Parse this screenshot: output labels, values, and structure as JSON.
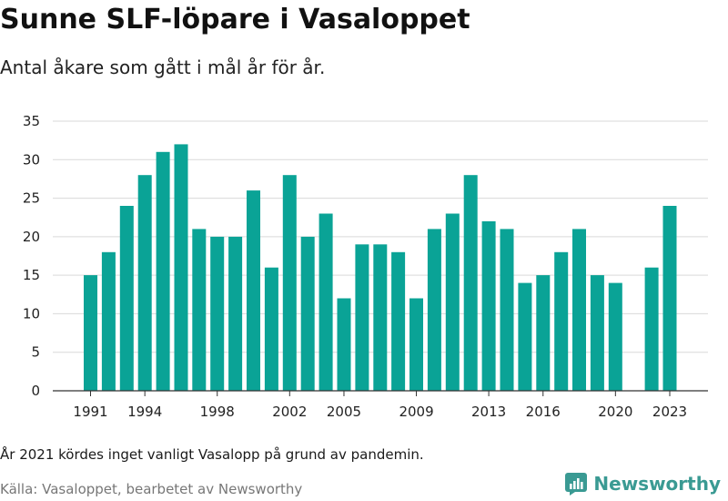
{
  "header": {
    "title": "Sunne SLF-löpare i Vasaloppet",
    "subtitle": "Antal åkare som gått i mål år för år."
  },
  "footer": {
    "note": "År 2021 kördes inget vanligt Vasalopp på grund av pandemin.",
    "source": "Källa: Vasaloppet, bearbetet av Newsworthy",
    "brand": "Newsworthy",
    "brand_icon": "newsworthy-logo-icon"
  },
  "colors": {
    "bar": "#0aa396",
    "grid": "#d9d9d9",
    "brand": "#3a9a93"
  },
  "chart_data": {
    "type": "bar",
    "title": "Sunne SLF-löpare i Vasaloppet",
    "subtitle": "Antal åkare som gått i mål år för år.",
    "categories": [
      1991,
      1992,
      1993,
      1994,
      1995,
      1996,
      1997,
      1998,
      1999,
      2000,
      2001,
      2002,
      2003,
      2004,
      2005,
      2006,
      2007,
      2008,
      2009,
      2010,
      2011,
      2012,
      2013,
      2014,
      2015,
      2016,
      2017,
      2018,
      2019,
      2020,
      2021,
      2022,
      2023
    ],
    "values": [
      15,
      18,
      24,
      28,
      31,
      32,
      21,
      20,
      20,
      26,
      16,
      28,
      20,
      23,
      12,
      19,
      19,
      18,
      12,
      21,
      23,
      28,
      22,
      21,
      14,
      15,
      18,
      21,
      15,
      14,
      null,
      16,
      24
    ],
    "x_tick_labels": [
      "1991",
      "1994",
      "1998",
      "2002",
      "2005",
      "2009",
      "2013",
      "2016",
      "2020",
      "2023"
    ],
    "y_ticks": [
      0,
      5,
      10,
      15,
      20,
      25,
      30,
      35
    ],
    "ylim": [
      0,
      35
    ],
    "xlabel": "",
    "ylabel": "",
    "grid": true,
    "legend": "none"
  }
}
